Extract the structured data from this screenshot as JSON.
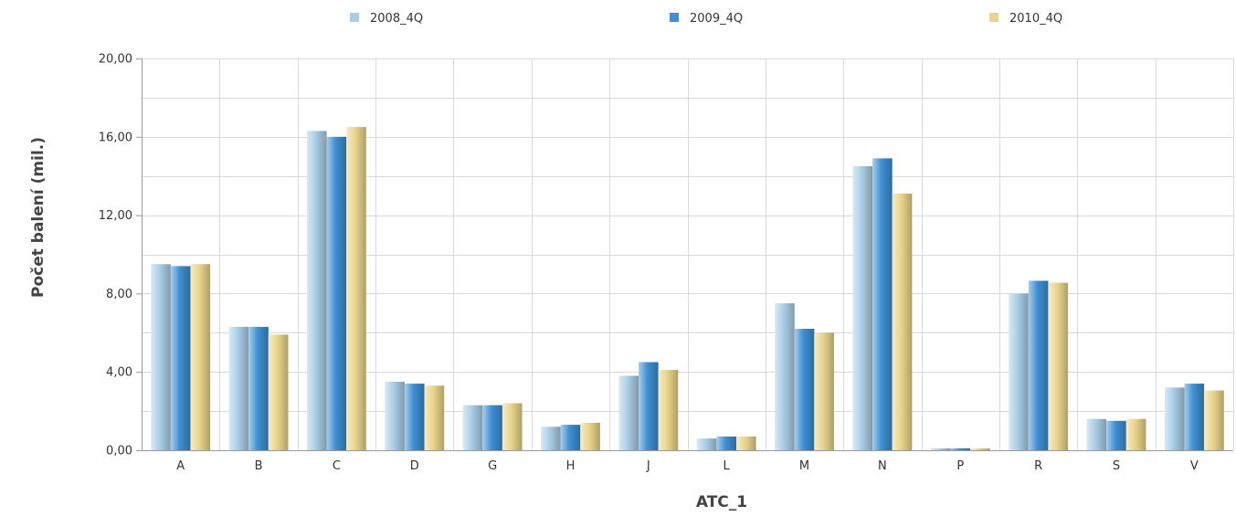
{
  "chart_data": {
    "type": "bar",
    "title": "",
    "xlabel": "ATC_1",
    "ylabel": "Počet balení (mil.)",
    "categories": [
      "A",
      "B",
      "C",
      "D",
      "G",
      "H",
      "J",
      "L",
      "M",
      "N",
      "P",
      "R",
      "S",
      "V"
    ],
    "series": [
      {
        "name": "2008_4Q",
        "color": "#a9cde6",
        "values": [
          9.5,
          6.3,
          16.3,
          3.5,
          2.3,
          1.2,
          3.8,
          0.6,
          7.5,
          14.5,
          0.1,
          8.0,
          1.6,
          3.2
        ]
      },
      {
        "name": "2009_4Q",
        "color": "#3f8fd2",
        "values": [
          9.4,
          6.3,
          16.0,
          3.4,
          2.3,
          1.3,
          4.5,
          0.7,
          6.2,
          14.9,
          0.1,
          8.65,
          1.5,
          3.4
        ]
      },
      {
        "name": "2010_4Q",
        "color": "#e8d48a",
        "values": [
          9.5,
          5.9,
          16.5,
          3.3,
          2.4,
          1.4,
          4.1,
          0.7,
          6.0,
          13.1,
          0.1,
          8.55,
          1.6,
          3.05
        ]
      }
    ],
    "ylim": [
      0,
      20
    ],
    "y_ticks": [
      "0,00",
      "4,00",
      "8,00",
      "12,00",
      "16,00",
      "20,00"
    ],
    "y_tick_values": [
      0,
      4,
      8,
      12,
      16,
      20
    ],
    "grid": true,
    "legend_position": "top"
  }
}
